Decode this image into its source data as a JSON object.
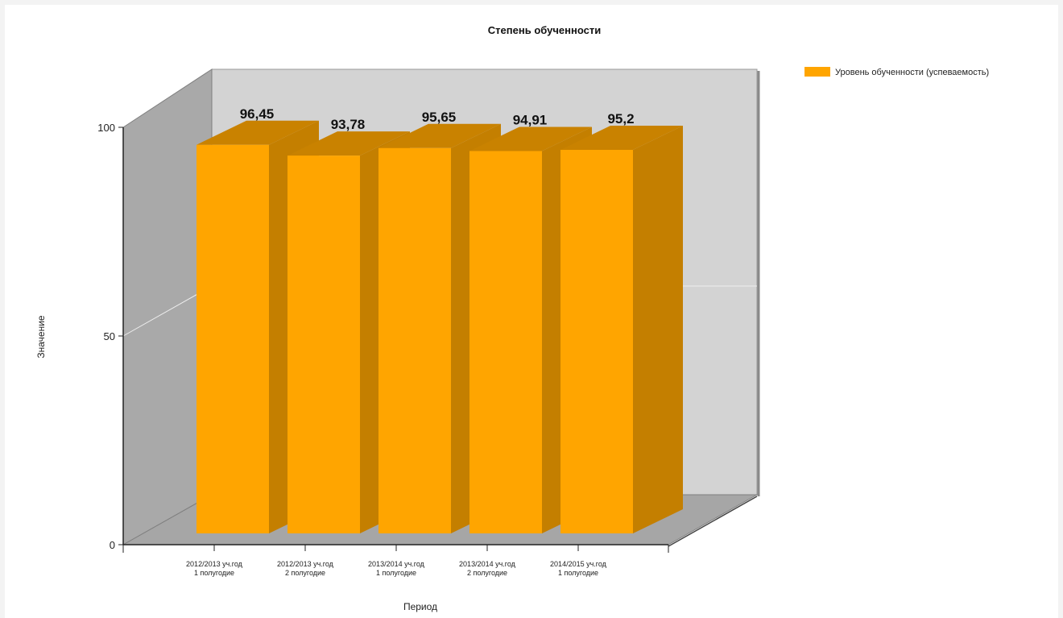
{
  "chart_data": {
    "type": "bar",
    "title": "Степень обученности",
    "xlabel": "Период",
    "ylabel": "Значение",
    "ylim": [
      0,
      100
    ],
    "yticks": [
      0,
      50,
      100
    ],
    "categories": [
      [
        "2012/2013 уч.год",
        "1 полугодие"
      ],
      [
        "2012/2013 уч.год",
        "2 полугодие"
      ],
      [
        "2013/2014 уч.год",
        "1 полугодие"
      ],
      [
        "2013/2014 уч.год",
        "2 полугодие"
      ],
      [
        "2014/2015 уч.год",
        "1 полугодие"
      ]
    ],
    "series": [
      {
        "name": "Уровень обученности (успеваемость)",
        "values": [
          96.45,
          93.78,
          95.65,
          94.91,
          95.2
        ],
        "labels": [
          "96,45",
          "93,78",
          "95,65",
          "94,91",
          "95,2"
        ],
        "color": "#FFA500"
      }
    ],
    "legend_position": "top-right",
    "style": "3d"
  }
}
